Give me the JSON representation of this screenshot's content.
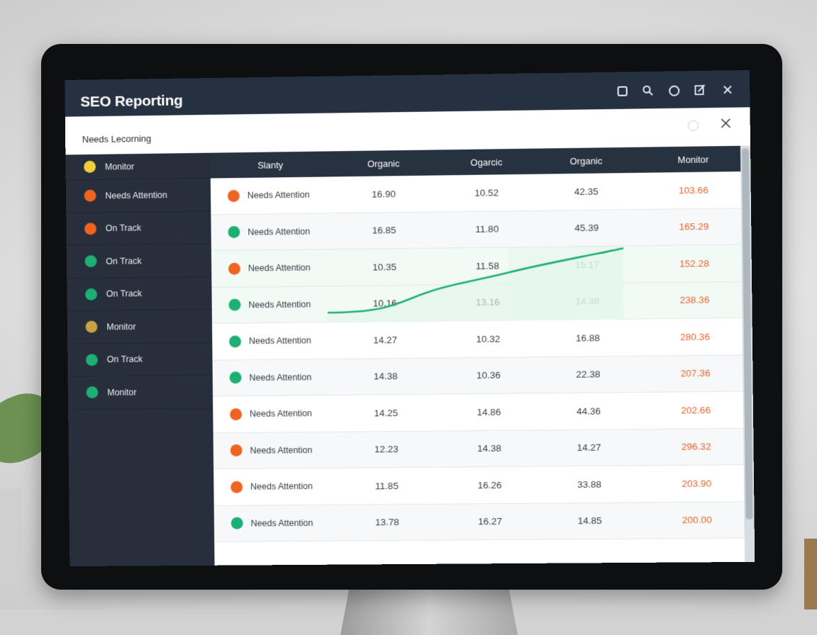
{
  "window": {
    "title": "SEO Reporting",
    "controls": [
      "square-icon",
      "search-icon",
      "circle-icon",
      "edit-icon",
      "close-icon"
    ]
  },
  "subbar": {
    "label": "Needs Lecorning"
  },
  "sidebar": {
    "items": [
      {
        "label": "Monitor",
        "color": "#f2cf3a"
      },
      {
        "label": "Needs Attention",
        "color": "#f06421"
      },
      {
        "label": "On Track",
        "color": "#f06421"
      },
      {
        "label": "On Track",
        "color": "#1daf73"
      },
      {
        "label": "On Track",
        "color": "#1daf73"
      },
      {
        "label": "Monitor",
        "color": "#c9a245"
      },
      {
        "label": "On Track",
        "color": "#1daf73"
      },
      {
        "label": "Monitor",
        "color": "#1daf73"
      }
    ]
  },
  "table": {
    "headers": [
      "Slanty",
      "Organic",
      "Ogarcic",
      "Organic",
      "Monitor"
    ],
    "rows": [
      {
        "status": "Needs Attention",
        "color": "#f06421",
        "a": "16.90",
        "b": "10.52",
        "c": "42.35",
        "d": "103.66"
      },
      {
        "status": "Needs Attention",
        "color": "#1daf73",
        "a": "16.85",
        "b": "11.80",
        "c": "45.39",
        "d": "165.29"
      },
      {
        "status": "Needs Attention",
        "color": "#f06421",
        "a": "10.35",
        "b": "11.58",
        "c": "15.17",
        "d": "152.28"
      },
      {
        "status": "Needs Attention",
        "color": "#1daf73",
        "a": "10.16",
        "b": "13.16",
        "c": "14.38",
        "d": "238.36"
      },
      {
        "status": "Needs Attention",
        "color": "#1daf73",
        "a": "14.27",
        "b": "10.32",
        "c": "16.88",
        "d": "280.36"
      },
      {
        "status": "Needs Attention",
        "color": "#1daf73",
        "a": "14.38",
        "b": "10.36",
        "c": "22.38",
        "d": "207.36"
      },
      {
        "status": "Needs Attention",
        "color": "#f06421",
        "a": "14.25",
        "b": "14.86",
        "c": "44.36",
        "d": "202.66"
      },
      {
        "status": "Needs Attention",
        "color": "#f06421",
        "a": "12.23",
        "b": "14.38",
        "c": "14.27",
        "d": "296.32"
      },
      {
        "status": "Needs Attention",
        "color": "#f06421",
        "a": "11.85",
        "b": "16.26",
        "c": "33.88",
        "d": "203.90"
      },
      {
        "status": "Needs Attention",
        "color": "#1daf73",
        "a": "13.78",
        "b": "16.27",
        "c": "14.85",
        "d": "200.00"
      }
    ]
  },
  "trend": {
    "color": "#1daf73",
    "fill": "#e3f6ec"
  }
}
